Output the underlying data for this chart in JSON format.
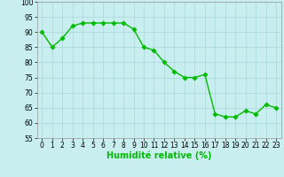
{
  "x": [
    0,
    1,
    2,
    3,
    4,
    5,
    6,
    7,
    8,
    9,
    10,
    11,
    12,
    13,
    14,
    15,
    16,
    17,
    18,
    19,
    20,
    21,
    22,
    23
  ],
  "y": [
    90,
    85,
    88,
    92,
    93,
    93,
    93,
    93,
    93,
    91,
    85,
    84,
    80,
    77,
    75,
    75,
    76,
    63,
    62,
    62,
    64,
    63,
    66,
    65
  ],
  "line_color": "#00bb00",
  "marker_color": "#00bb00",
  "bg_color": "#c8eef0",
  "grid_color": "#aad8da",
  "xlabel": "Humidité relative (%)",
  "xlabel_color": "#00bb00",
  "ylim": [
    55,
    100
  ],
  "yticks": [
    55,
    60,
    65,
    70,
    75,
    80,
    85,
    90,
    95,
    100
  ],
  "xticks": [
    0,
    1,
    2,
    3,
    4,
    5,
    6,
    7,
    8,
    9,
    10,
    11,
    12,
    13,
    14,
    15,
    16,
    17,
    18,
    19,
    20,
    21,
    22,
    23
  ],
  "tick_color": "#000000",
  "line_width": 1.0,
  "marker_size": 2.8,
  "tick_fontsize": 5.5,
  "xlabel_fontsize": 7.0
}
